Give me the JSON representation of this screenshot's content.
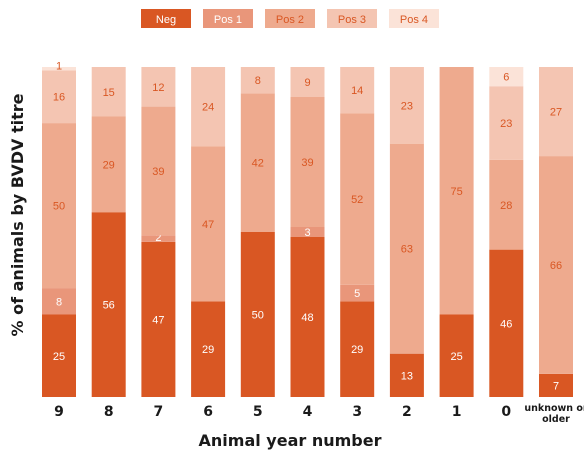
{
  "chart_data": {
    "type": "bar",
    "stacked": true,
    "percent_stacked": true,
    "xlabel": "Animal year number",
    "ylabel": "% of animals by BVDV titre",
    "ylim": [
      0,
      100
    ],
    "grid": false,
    "legend_position": "top",
    "categories": [
      "9",
      "8",
      "7",
      "6",
      "5",
      "4",
      "3",
      "2",
      "1",
      "0",
      "unknown or older"
    ],
    "series": [
      {
        "name": "Neg",
        "color": "#d95723",
        "label_color": "#ffffff",
        "values": [
          25,
          56,
          47,
          29,
          50,
          48,
          29,
          13,
          25,
          46,
          7
        ]
      },
      {
        "name": "Pos 1",
        "color": "#e9967a",
        "label_color": "#ffffff",
        "values": [
          8,
          0,
          2,
          0,
          0,
          3,
          5,
          0,
          0,
          0,
          0
        ]
      },
      {
        "name": "Pos 2",
        "color": "#eeaa8e",
        "label_color": "#d95723",
        "values": [
          50,
          29,
          39,
          47,
          42,
          39,
          52,
          63,
          75,
          28,
          66
        ]
      },
      {
        "name": "Pos 3",
        "color": "#f4c5b2",
        "label_color": "#d95723",
        "values": [
          16,
          15,
          12,
          24,
          8,
          9,
          14,
          23,
          0,
          23,
          27
        ]
      },
      {
        "name": "Pos 4",
        "color": "#fbe3d8",
        "label_color": "#d95723",
        "values": [
          1,
          0,
          0,
          0,
          0,
          0,
          0,
          0,
          0,
          6,
          0
        ]
      }
    ]
  }
}
